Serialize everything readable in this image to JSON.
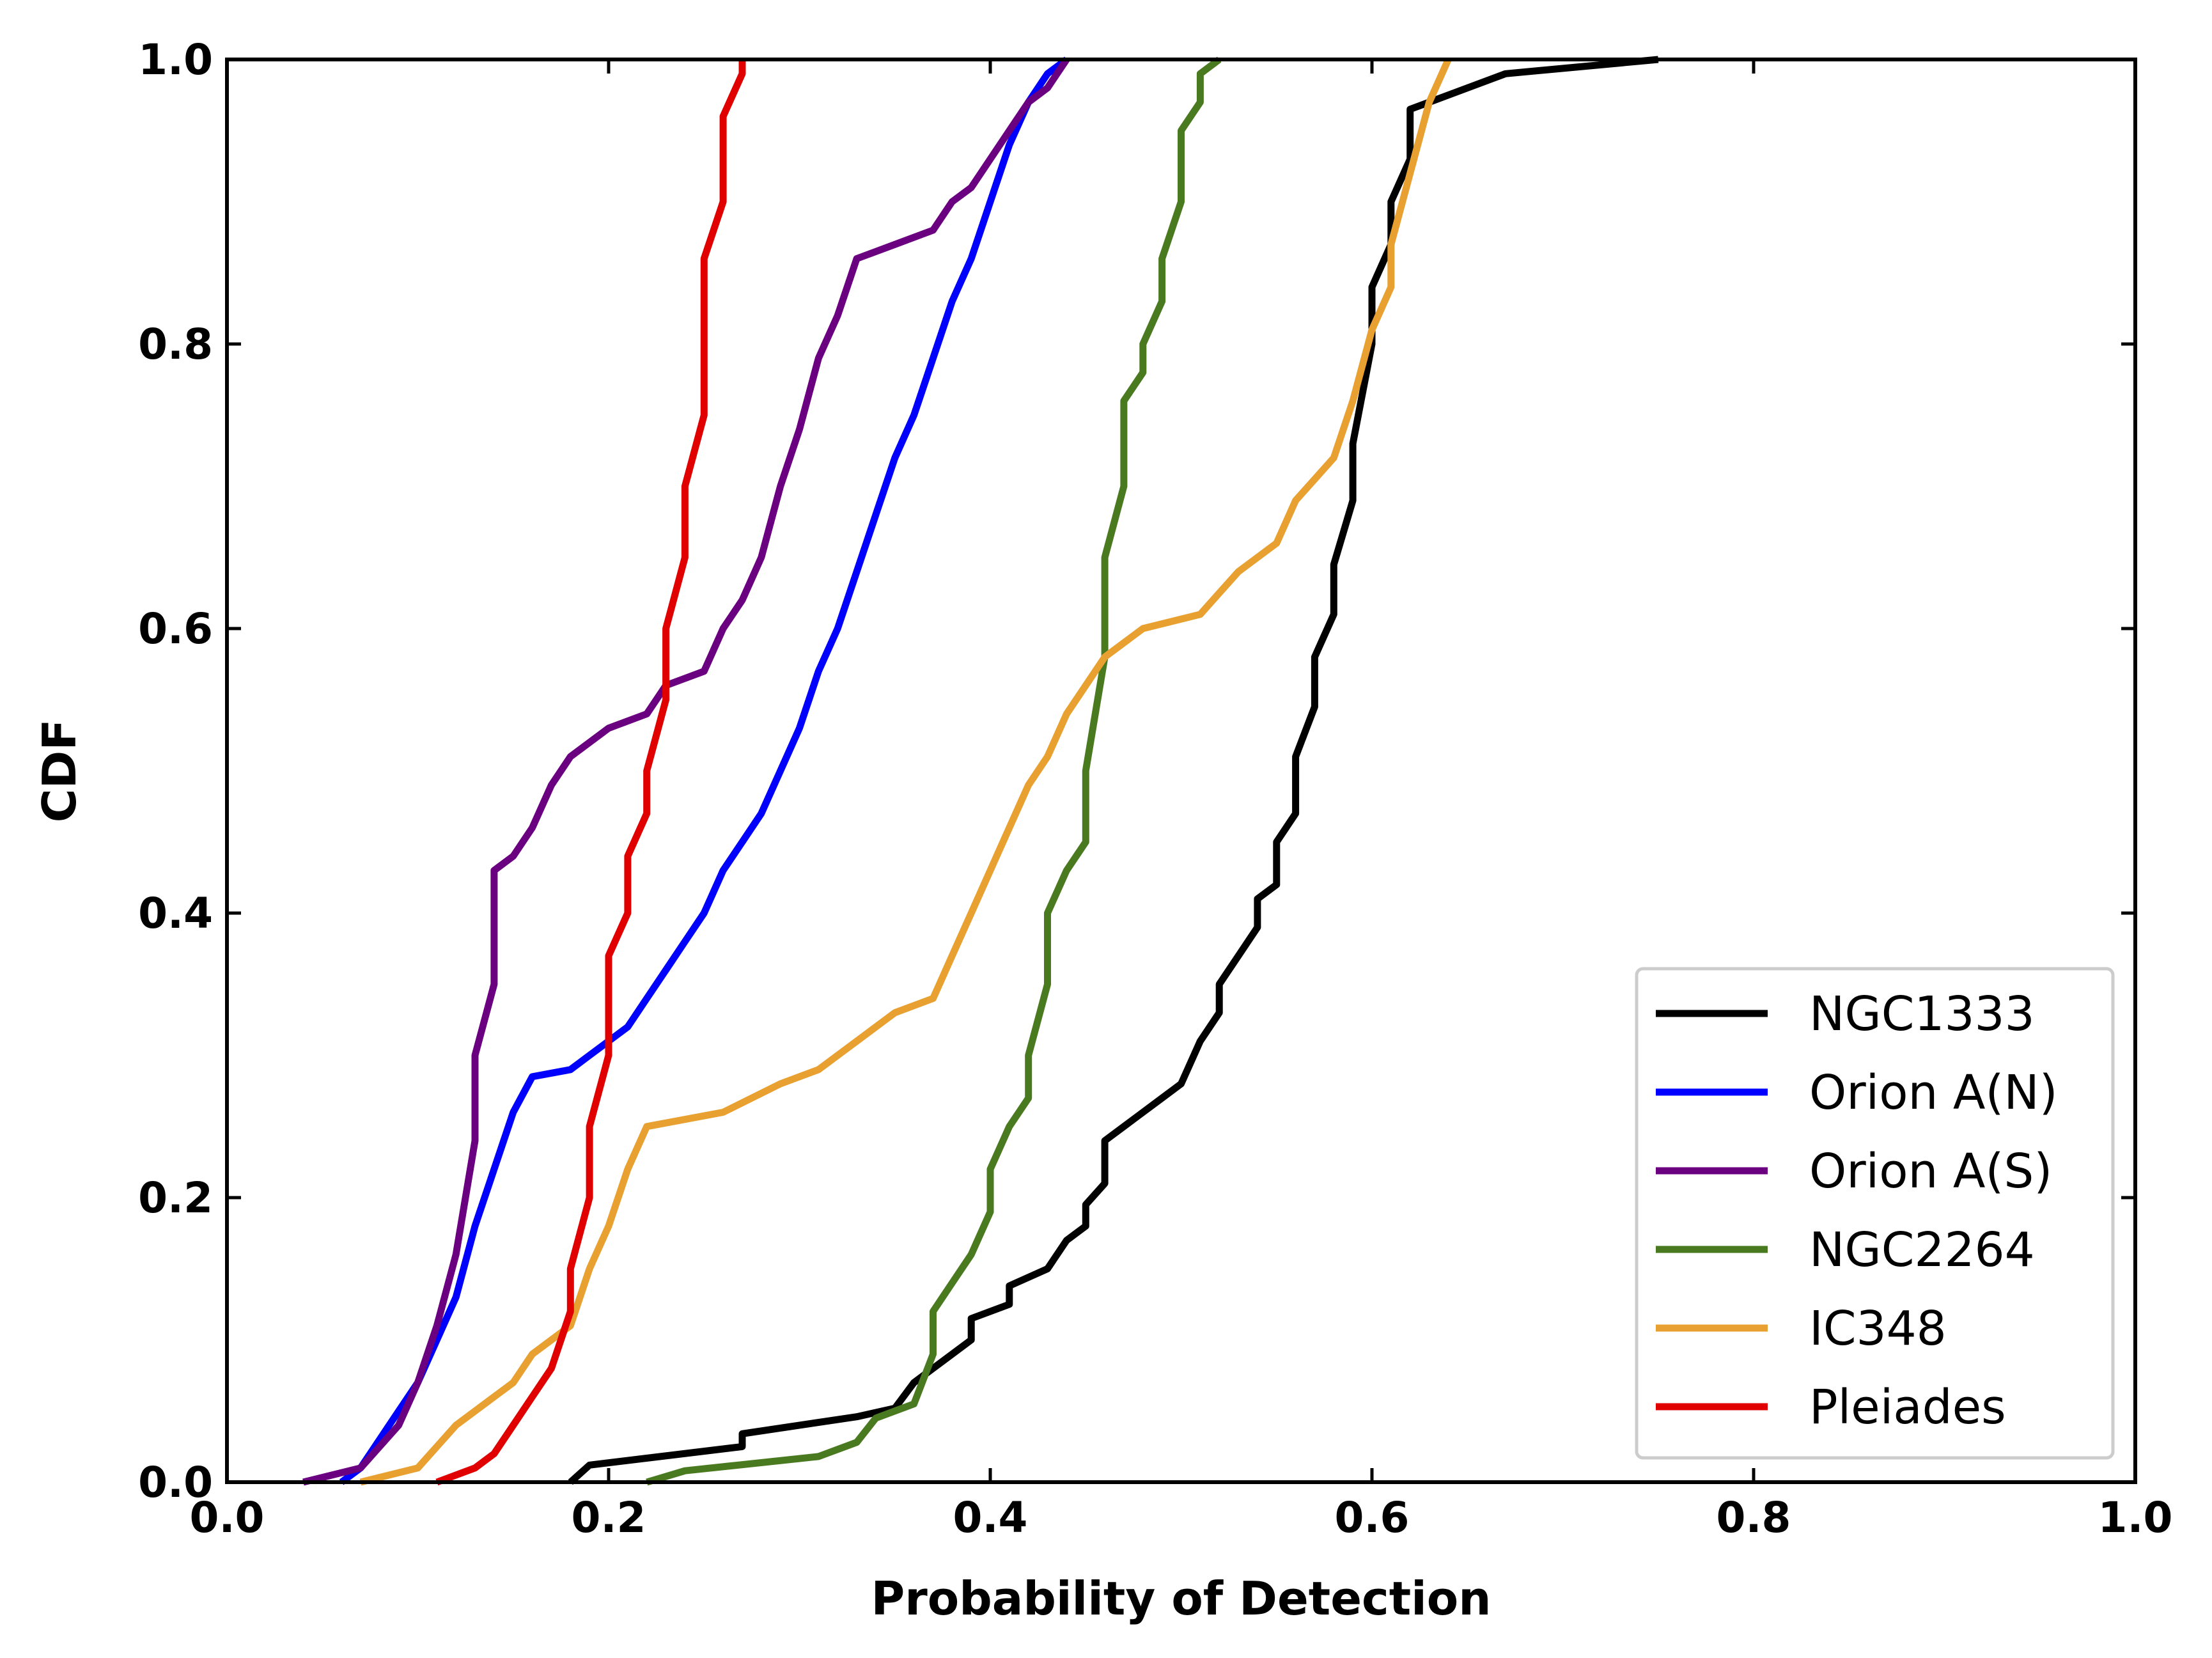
{
  "chart_data": {
    "type": "line",
    "title": "",
    "xlabel": "Probability of Detection",
    "ylabel": "CDF",
    "xlim": [
      0.0,
      1.0
    ],
    "ylim": [
      0.0,
      1.0
    ],
    "xticks": [
      0.0,
      0.2,
      0.4,
      0.6,
      0.8,
      1.0
    ],
    "yticks": [
      0.0,
      0.2,
      0.4,
      0.6,
      0.8,
      1.0
    ],
    "xtick_labels": [
      "0.0",
      "0.2",
      "0.4",
      "0.6",
      "0.8",
      "1.0"
    ],
    "ytick_labels": [
      "0.0",
      "0.2",
      "0.4",
      "0.6",
      "0.8",
      "1.0"
    ],
    "grid": false,
    "legend_position": "lower-right",
    "series": [
      {
        "name": "NGC1333",
        "color": "#000000",
        "points": [
          [
            0.18,
            0.0
          ],
          [
            0.19,
            0.012
          ],
          [
            0.27,
            0.025
          ],
          [
            0.27,
            0.034
          ],
          [
            0.33,
            0.046
          ],
          [
            0.35,
            0.052
          ],
          [
            0.36,
            0.07
          ],
          [
            0.38,
            0.09
          ],
          [
            0.39,
            0.1
          ],
          [
            0.39,
            0.115
          ],
          [
            0.4,
            0.12
          ],
          [
            0.41,
            0.125
          ],
          [
            0.41,
            0.138
          ],
          [
            0.43,
            0.15
          ],
          [
            0.44,
            0.17
          ],
          [
            0.45,
            0.18
          ],
          [
            0.45,
            0.195
          ],
          [
            0.46,
            0.21
          ],
          [
            0.46,
            0.24
          ],
          [
            0.47,
            0.25
          ],
          [
            0.49,
            0.27
          ],
          [
            0.5,
            0.28
          ],
          [
            0.51,
            0.31
          ],
          [
            0.52,
            0.33
          ],
          [
            0.52,
            0.35
          ],
          [
            0.53,
            0.37
          ],
          [
            0.54,
            0.39
          ],
          [
            0.54,
            0.41
          ],
          [
            0.55,
            0.42
          ],
          [
            0.55,
            0.45
          ],
          [
            0.56,
            0.47
          ],
          [
            0.56,
            0.51
          ],
          [
            0.57,
            0.545
          ],
          [
            0.57,
            0.58
          ],
          [
            0.58,
            0.61
          ],
          [
            0.58,
            0.645
          ],
          [
            0.59,
            0.69
          ],
          [
            0.59,
            0.73
          ],
          [
            0.6,
            0.8
          ],
          [
            0.6,
            0.84
          ],
          [
            0.61,
            0.87
          ],
          [
            0.61,
            0.9
          ],
          [
            0.62,
            0.93
          ],
          [
            0.62,
            0.965
          ],
          [
            0.63,
            0.97
          ],
          [
            0.67,
            0.99
          ],
          [
            0.75,
            1.0
          ]
        ]
      },
      {
        "name": "Orion A(N)",
        "color": "#0000ff",
        "points": [
          [
            0.06,
            0.0
          ],
          [
            0.07,
            0.01
          ],
          [
            0.08,
            0.03
          ],
          [
            0.09,
            0.05
          ],
          [
            0.1,
            0.07
          ],
          [
            0.11,
            0.1
          ],
          [
            0.12,
            0.13
          ],
          [
            0.13,
            0.18
          ],
          [
            0.14,
            0.22
          ],
          [
            0.15,
            0.26
          ],
          [
            0.16,
            0.285
          ],
          [
            0.18,
            0.29
          ],
          [
            0.19,
            0.3
          ],
          [
            0.21,
            0.32
          ],
          [
            0.22,
            0.34
          ],
          [
            0.23,
            0.36
          ],
          [
            0.24,
            0.38
          ],
          [
            0.25,
            0.4
          ],
          [
            0.26,
            0.43
          ],
          [
            0.27,
            0.45
          ],
          [
            0.28,
            0.47
          ],
          [
            0.29,
            0.5
          ],
          [
            0.3,
            0.53
          ],
          [
            0.31,
            0.57
          ],
          [
            0.32,
            0.6
          ],
          [
            0.33,
            0.64
          ],
          [
            0.34,
            0.68
          ],
          [
            0.35,
            0.72
          ],
          [
            0.36,
            0.75
          ],
          [
            0.37,
            0.79
          ],
          [
            0.38,
            0.83
          ],
          [
            0.39,
            0.86
          ],
          [
            0.4,
            0.9
          ],
          [
            0.41,
            0.94
          ],
          [
            0.42,
            0.97
          ],
          [
            0.43,
            0.99
          ],
          [
            0.44,
            1.0
          ]
        ]
      },
      {
        "name": "Orion A(S)",
        "color": "#6a0080",
        "points": [
          [
            0.04,
            0.0
          ],
          [
            0.07,
            0.01
          ],
          [
            0.09,
            0.04
          ],
          [
            0.1,
            0.07
          ],
          [
            0.11,
            0.11
          ],
          [
            0.12,
            0.16
          ],
          [
            0.13,
            0.24
          ],
          [
            0.13,
            0.3
          ],
          [
            0.14,
            0.35
          ],
          [
            0.14,
            0.43
          ],
          [
            0.15,
            0.44
          ],
          [
            0.16,
            0.46
          ],
          [
            0.17,
            0.49
          ],
          [
            0.18,
            0.51
          ],
          [
            0.2,
            0.53
          ],
          [
            0.22,
            0.54
          ],
          [
            0.23,
            0.56
          ],
          [
            0.25,
            0.57
          ],
          [
            0.26,
            0.6
          ],
          [
            0.27,
            0.62
          ],
          [
            0.28,
            0.65
          ],
          [
            0.29,
            0.7
          ],
          [
            0.3,
            0.74
          ],
          [
            0.31,
            0.79
          ],
          [
            0.32,
            0.82
          ],
          [
            0.33,
            0.86
          ],
          [
            0.35,
            0.87
          ],
          [
            0.37,
            0.88
          ],
          [
            0.38,
            0.9
          ],
          [
            0.39,
            0.91
          ],
          [
            0.4,
            0.93
          ],
          [
            0.41,
            0.95
          ],
          [
            0.42,
            0.97
          ],
          [
            0.43,
            0.98
          ],
          [
            0.44,
            1.0
          ]
        ]
      },
      {
        "name": "NGC2264",
        "color": "#4a7a20",
        "points": [
          [
            0.22,
            0.0
          ],
          [
            0.24,
            0.008
          ],
          [
            0.31,
            0.018
          ],
          [
            0.33,
            0.028
          ],
          [
            0.34,
            0.045
          ],
          [
            0.36,
            0.055
          ],
          [
            0.37,
            0.09
          ],
          [
            0.37,
            0.12
          ],
          [
            0.38,
            0.14
          ],
          [
            0.39,
            0.16
          ],
          [
            0.4,
            0.19
          ],
          [
            0.4,
            0.22
          ],
          [
            0.41,
            0.25
          ],
          [
            0.42,
            0.27
          ],
          [
            0.42,
            0.3
          ],
          [
            0.43,
            0.35
          ],
          [
            0.43,
            0.4
          ],
          [
            0.44,
            0.43
          ],
          [
            0.45,
            0.45
          ],
          [
            0.45,
            0.5
          ],
          [
            0.46,
            0.58
          ],
          [
            0.46,
            0.65
          ],
          [
            0.47,
            0.7
          ],
          [
            0.47,
            0.76
          ],
          [
            0.48,
            0.78
          ],
          [
            0.48,
            0.8
          ],
          [
            0.49,
            0.83
          ],
          [
            0.49,
            0.86
          ],
          [
            0.5,
            0.9
          ],
          [
            0.5,
            0.95
          ],
          [
            0.51,
            0.97
          ],
          [
            0.51,
            0.99
          ],
          [
            0.52,
            1.0
          ]
        ]
      },
      {
        "name": "IC348",
        "color": "#e8a030",
        "points": [
          [
            0.07,
            0.0
          ],
          [
            0.1,
            0.01
          ],
          [
            0.12,
            0.04
          ],
          [
            0.14,
            0.06
          ],
          [
            0.15,
            0.07
          ],
          [
            0.16,
            0.09
          ],
          [
            0.18,
            0.11
          ],
          [
            0.19,
            0.15
          ],
          [
            0.2,
            0.18
          ],
          [
            0.21,
            0.22
          ],
          [
            0.22,
            0.25
          ],
          [
            0.26,
            0.26
          ],
          [
            0.29,
            0.28
          ],
          [
            0.31,
            0.29
          ],
          [
            0.33,
            0.31
          ],
          [
            0.35,
            0.33
          ],
          [
            0.37,
            0.34
          ],
          [
            0.38,
            0.37
          ],
          [
            0.39,
            0.4
          ],
          [
            0.4,
            0.43
          ],
          [
            0.41,
            0.46
          ],
          [
            0.42,
            0.49
          ],
          [
            0.43,
            0.51
          ],
          [
            0.44,
            0.54
          ],
          [
            0.45,
            0.56
          ],
          [
            0.46,
            0.58
          ],
          [
            0.48,
            0.6
          ],
          [
            0.51,
            0.61
          ],
          [
            0.53,
            0.64
          ],
          [
            0.55,
            0.66
          ],
          [
            0.56,
            0.69
          ],
          [
            0.58,
            0.72
          ],
          [
            0.59,
            0.76
          ],
          [
            0.6,
            0.81
          ],
          [
            0.61,
            0.84
          ],
          [
            0.61,
            0.87
          ],
          [
            0.62,
            0.92
          ],
          [
            0.63,
            0.97
          ],
          [
            0.64,
            1.0
          ]
        ]
      },
      {
        "name": "Pleiades",
        "color": "#e00000",
        "points": [
          [
            0.11,
            0.0
          ],
          [
            0.13,
            0.01
          ],
          [
            0.14,
            0.02
          ],
          [
            0.15,
            0.04
          ],
          [
            0.16,
            0.06
          ],
          [
            0.17,
            0.08
          ],
          [
            0.18,
            0.12
          ],
          [
            0.18,
            0.15
          ],
          [
            0.19,
            0.2
          ],
          [
            0.19,
            0.25
          ],
          [
            0.2,
            0.3
          ],
          [
            0.2,
            0.37
          ],
          [
            0.21,
            0.4
          ],
          [
            0.21,
            0.44
          ],
          [
            0.22,
            0.47
          ],
          [
            0.22,
            0.5
          ],
          [
            0.23,
            0.55
          ],
          [
            0.23,
            0.6
          ],
          [
            0.24,
            0.65
          ],
          [
            0.24,
            0.7
          ],
          [
            0.25,
            0.75
          ],
          [
            0.25,
            0.8
          ],
          [
            0.25,
            0.86
          ],
          [
            0.26,
            0.9
          ],
          [
            0.26,
            0.96
          ],
          [
            0.27,
            0.99
          ],
          [
            0.27,
            1.0
          ]
        ]
      }
    ]
  }
}
